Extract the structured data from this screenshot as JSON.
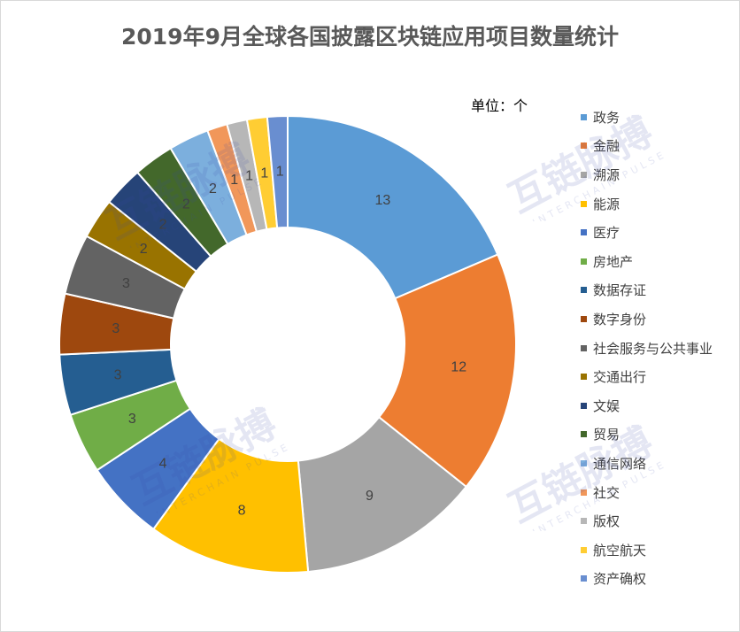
{
  "chart_data": {
    "type": "pie",
    "donut": true,
    "title": "2019年9月全球各国披露区块链应用项目数量统计",
    "unit": "单位：个",
    "legend_position": "right",
    "categories": [
      "政务",
      "金融",
      "溯源",
      "能源",
      "医疗",
      "房地产",
      "数据存证",
      "数字身份",
      "社会服务与公共事业",
      "交通出行",
      "文娱",
      "贸易",
      "通信网络",
      "社交",
      "版权",
      "航空航天",
      "资产确权"
    ],
    "values": [
      13,
      12,
      9,
      8,
      4,
      3,
      3,
      3,
      3,
      2,
      2,
      2,
      2,
      1,
      1,
      1,
      1
    ],
    "colors": [
      "#5b9bd5",
      "#ed7d31",
      "#a5a5a5",
      "#ffc000",
      "#4472c4",
      "#70ad47",
      "#255e91",
      "#9e480e",
      "#636363",
      "#997300",
      "#264478",
      "#43682b",
      "#7cafdd",
      "#f1975a",
      "#b7b7b7",
      "#ffcd33",
      "#698ed0"
    ]
  },
  "watermark": {
    "text": "互链脉搏",
    "subtext": "INTERCHAIN PULSE"
  }
}
